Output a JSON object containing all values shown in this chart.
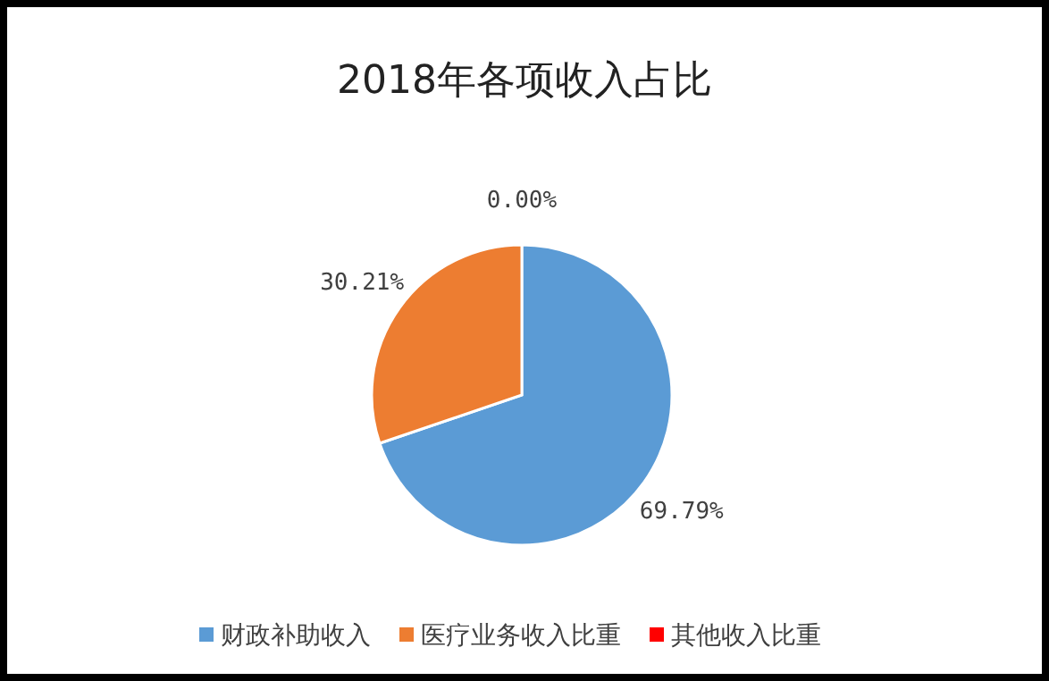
{
  "chart_data": {
    "type": "pie",
    "title": "2018年各项收入占比",
    "categories": [
      "财政补助收入",
      "医疗业务收入比重",
      "其他收入比重"
    ],
    "values": [
      69.79,
      30.21,
      0.0
    ],
    "colors": [
      "#5b9bd5",
      "#ed7d31",
      "#ff0000"
    ],
    "value_labels": [
      "69.79%",
      "30.21%",
      "0.00%"
    ],
    "legend": "bottom"
  }
}
